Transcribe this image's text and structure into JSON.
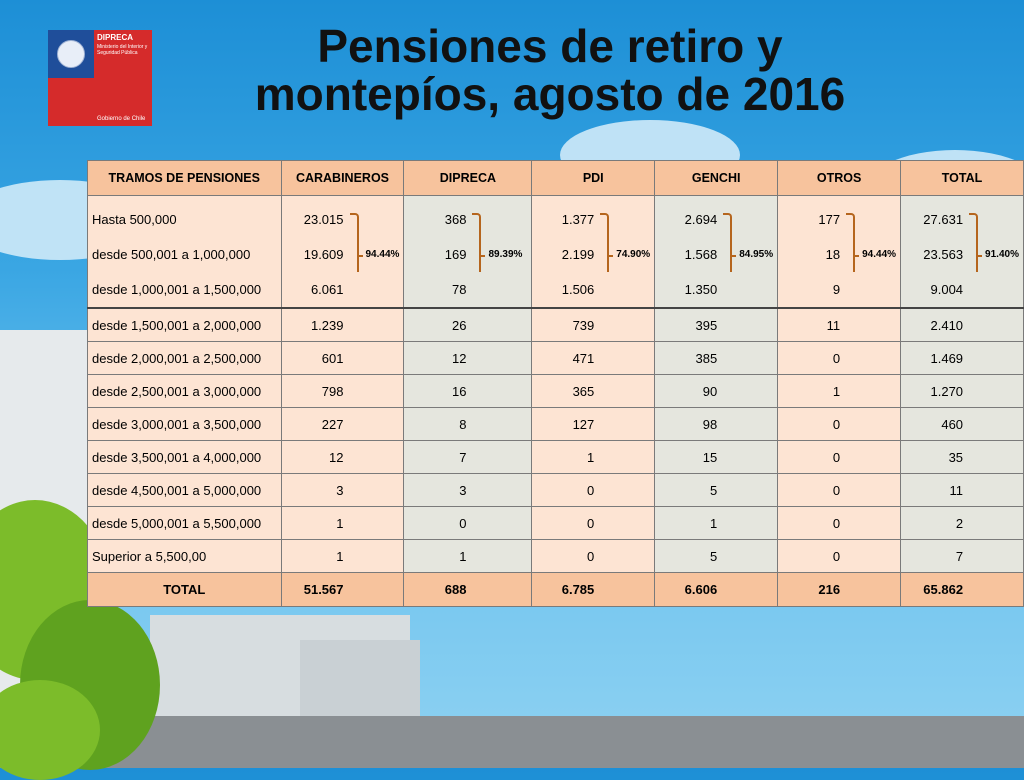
{
  "logo": {
    "line1": "DIPRECA",
    "line2": "Ministerio del Interior y Seguridad Pública",
    "line3": "Gobierno de Chile"
  },
  "title": {
    "line1": "Pensiones de retiro y",
    "line2": "montepíos, agosto de 2016"
  },
  "table": {
    "headers": [
      "TRAMOS DE PENSIONES",
      "CARABINEROS",
      "DIPRECA",
      "PDI",
      "GENCHI",
      "OTROS",
      "TOTAL"
    ],
    "group": {
      "rows": [
        {
          "label": "Hasta 500,000",
          "values": [
            "23.015",
            "368",
            "1.377",
            "2.694",
            "177",
            "27.631"
          ]
        },
        {
          "label": "desde    500,001 a 1,000,000",
          "values": [
            "19.609",
            "169",
            "2.199",
            "1.568",
            "18",
            "23.563"
          ]
        },
        {
          "label": "desde 1,000,001 a 1,500,000",
          "values": [
            "6.061",
            "78",
            "1.506",
            "1.350",
            "9",
            "9.004"
          ]
        }
      ],
      "percents": [
        "94.44%",
        "89.39%",
        "74.90%",
        "84.95%",
        "94.44%",
        "91.40%"
      ]
    },
    "rows": [
      {
        "label": "desde 1,500,001 a 2,000,000",
        "values": [
          "1.239",
          "26",
          "739",
          "395",
          "11",
          "2.410"
        ]
      },
      {
        "label": "desde 2,000,001 a 2,500,000",
        "values": [
          "601",
          "12",
          "471",
          "385",
          "0",
          "1.469"
        ]
      },
      {
        "label": "desde 2,500,001 a 3,000,000",
        "values": [
          "798",
          "16",
          "365",
          "90",
          "1",
          "1.270"
        ]
      },
      {
        "label": "desde 3,000,001 a 3,500,000",
        "values": [
          "227",
          "8",
          "127",
          "98",
          "0",
          "460"
        ]
      },
      {
        "label": "desde 3,500,001 a 4,000,000",
        "values": [
          "12",
          "7",
          "1",
          "15",
          "0",
          "35"
        ]
      },
      {
        "label": "desde 4,500,001 a 5,000,000",
        "values": [
          "3",
          "3",
          "0",
          "5",
          "0",
          "11"
        ]
      },
      {
        "label": "desde 5,000,001 a 5,500,000",
        "values": [
          "1",
          "0",
          "0",
          "1",
          "0",
          "2"
        ]
      },
      {
        "label": "Superior a 5,500,00",
        "values": [
          "1",
          "1",
          "0",
          "5",
          "0",
          "7"
        ]
      }
    ],
    "total": {
      "label": "TOTAL",
      "values": [
        "51.567",
        "688",
        "6.785",
        "6.606",
        "216",
        "65.862"
      ]
    }
  }
}
